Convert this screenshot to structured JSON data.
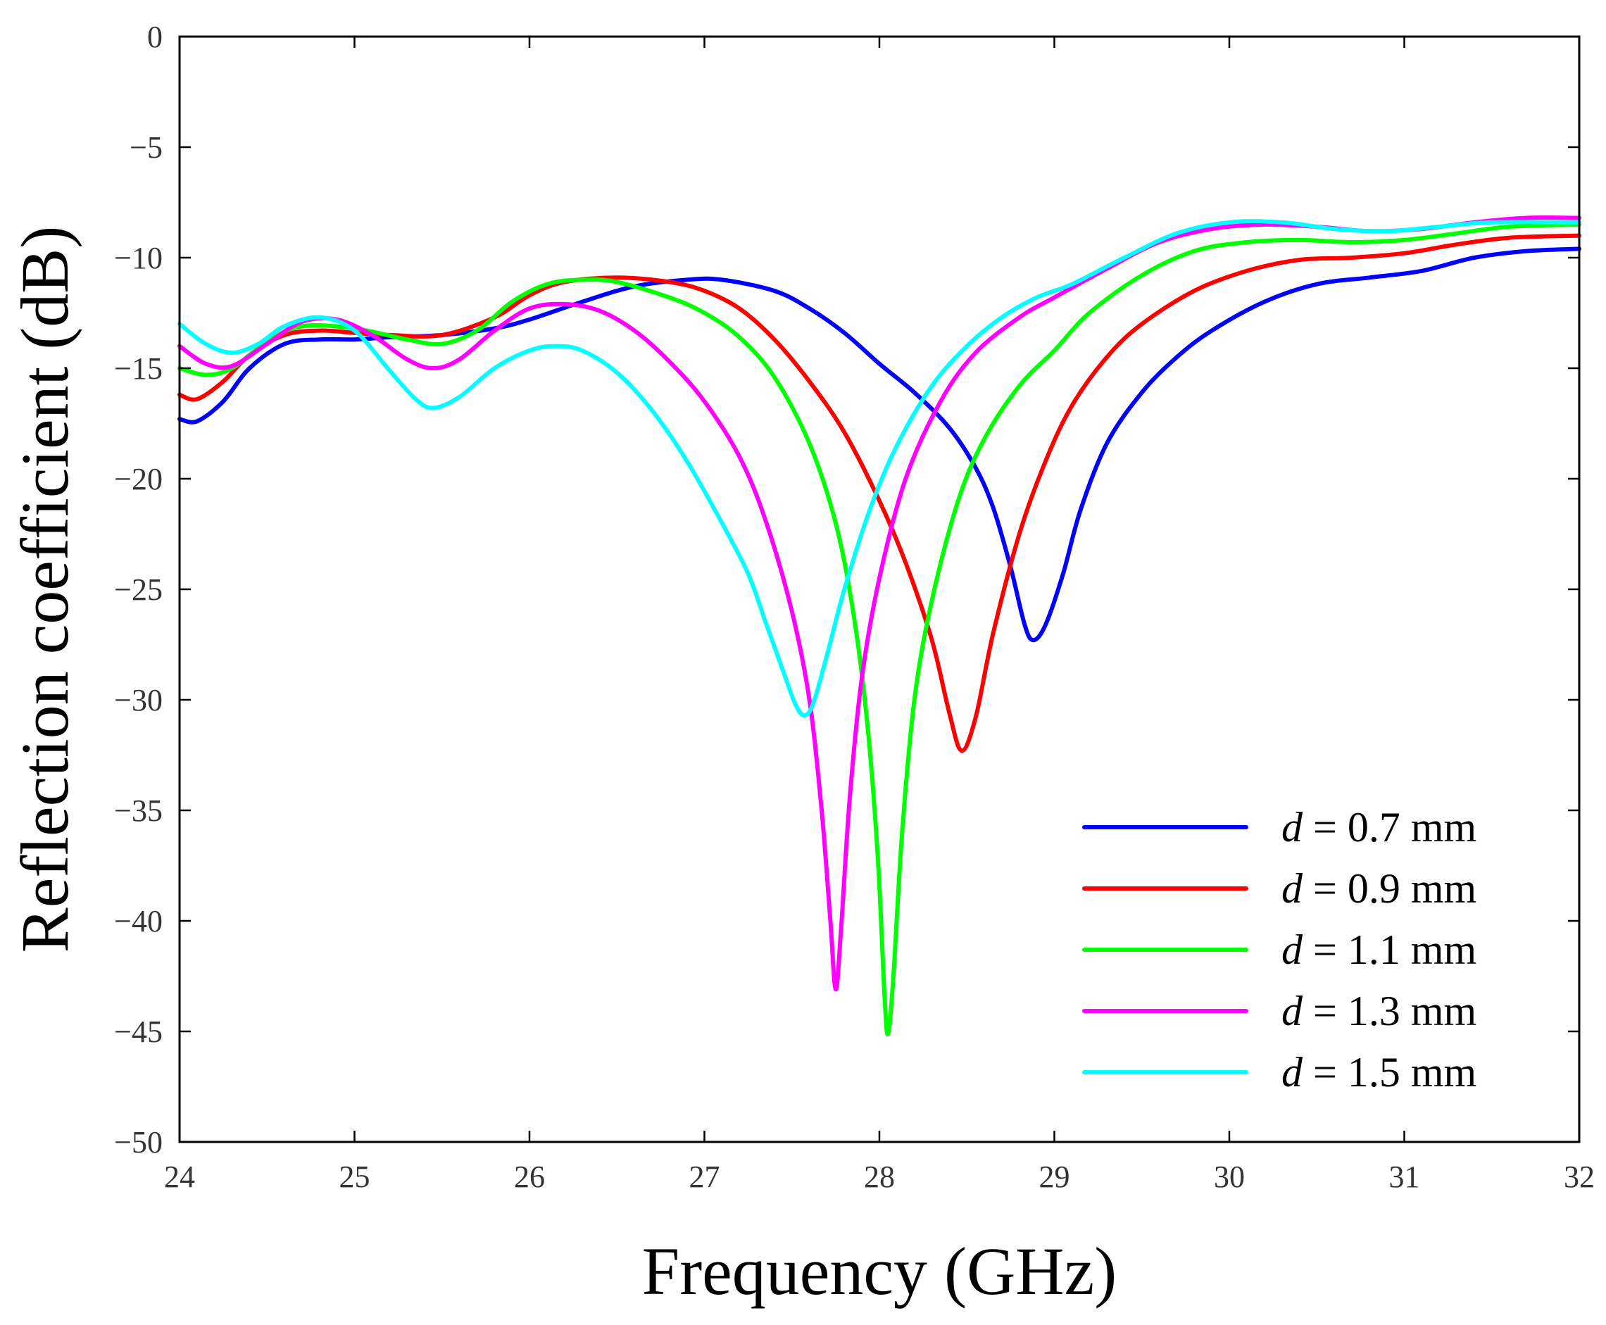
{
  "chart_data": {
    "type": "line",
    "title": "",
    "xlabel": "Frequency (GHz)",
    "ylabel": "Reflection coefficient (dB)",
    "xlim": [
      24,
      32
    ],
    "ylim": [
      -50,
      0
    ],
    "xticks": [
      24,
      25,
      26,
      27,
      28,
      29,
      30,
      31,
      32
    ],
    "xtick_labels": [
      "24",
      "25",
      "26",
      "27",
      "28",
      "29",
      "30",
      "31",
      "32"
    ],
    "yticks": [
      0,
      -5,
      -10,
      -15,
      -20,
      -25,
      -30,
      -35,
      -40,
      -45,
      -50
    ],
    "ytick_labels": [
      "0",
      "−5",
      "−10",
      "−15",
      "−20",
      "−25",
      "−30",
      "−35",
      "−40",
      "−45",
      "−50"
    ],
    "grid": false,
    "legend_position": "bottom-right",
    "series": [
      {
        "name": "d = 0.7 mm",
        "legend_var": "d",
        "legend_rest": " = 0.7 mm",
        "color": "#0000ff",
        "points": [
          [
            24.0,
            -17.3
          ],
          [
            24.1,
            -17.4
          ],
          [
            24.25,
            -16.5
          ],
          [
            24.4,
            -15.0
          ],
          [
            24.6,
            -13.9
          ],
          [
            24.8,
            -13.7
          ],
          [
            25.0,
            -13.7
          ],
          [
            25.2,
            -13.6
          ],
          [
            25.5,
            -13.5
          ],
          [
            25.8,
            -13.2
          ],
          [
            26.0,
            -12.8
          ],
          [
            26.3,
            -12.0
          ],
          [
            26.6,
            -11.3
          ],
          [
            26.9,
            -11.0
          ],
          [
            27.1,
            -11.0
          ],
          [
            27.4,
            -11.5
          ],
          [
            27.6,
            -12.3
          ],
          [
            27.8,
            -13.4
          ],
          [
            28.0,
            -14.8
          ],
          [
            28.2,
            -16.1
          ],
          [
            28.4,
            -17.7
          ],
          [
            28.55,
            -19.5
          ],
          [
            28.65,
            -21.3
          ],
          [
            28.75,
            -24.0
          ],
          [
            28.83,
            -26.6
          ],
          [
            28.88,
            -27.3
          ],
          [
            28.95,
            -26.6
          ],
          [
            29.05,
            -24.3
          ],
          [
            29.15,
            -21.4
          ],
          [
            29.3,
            -18.4
          ],
          [
            29.5,
            -16.1
          ],
          [
            29.7,
            -14.5
          ],
          [
            29.9,
            -13.3
          ],
          [
            30.2,
            -12.0
          ],
          [
            30.5,
            -11.2
          ],
          [
            30.8,
            -10.9
          ],
          [
            31.1,
            -10.6
          ],
          [
            31.4,
            -10.0
          ],
          [
            31.7,
            -9.7
          ],
          [
            32.0,
            -9.6
          ]
        ]
      },
      {
        "name": "d = 0.9 mm",
        "legend_var": "d",
        "legend_rest": " = 0.9 mm",
        "color": "#ff0000",
        "points": [
          [
            24.0,
            -16.2
          ],
          [
            24.1,
            -16.4
          ],
          [
            24.25,
            -15.6
          ],
          [
            24.4,
            -14.4
          ],
          [
            24.6,
            -13.5
          ],
          [
            24.8,
            -13.3
          ],
          [
            25.0,
            -13.4
          ],
          [
            25.2,
            -13.5
          ],
          [
            25.5,
            -13.5
          ],
          [
            25.8,
            -12.7
          ],
          [
            26.0,
            -11.7
          ],
          [
            26.2,
            -11.1
          ],
          [
            26.5,
            -10.9
          ],
          [
            26.8,
            -11.1
          ],
          [
            27.0,
            -11.5
          ],
          [
            27.2,
            -12.3
          ],
          [
            27.4,
            -13.7
          ],
          [
            27.6,
            -15.6
          ],
          [
            27.8,
            -17.9
          ],
          [
            28.0,
            -21.0
          ],
          [
            28.15,
            -23.8
          ],
          [
            28.3,
            -27.3
          ],
          [
            28.4,
            -30.6
          ],
          [
            28.47,
            -32.3
          ],
          [
            28.55,
            -30.8
          ],
          [
            28.65,
            -27.0
          ],
          [
            28.8,
            -22.5
          ],
          [
            28.95,
            -19.2
          ],
          [
            29.1,
            -16.7
          ],
          [
            29.3,
            -14.5
          ],
          [
            29.5,
            -13.0
          ],
          [
            29.8,
            -11.5
          ],
          [
            30.1,
            -10.6
          ],
          [
            30.4,
            -10.1
          ],
          [
            30.7,
            -10.0
          ],
          [
            31.0,
            -9.8
          ],
          [
            31.3,
            -9.4
          ],
          [
            31.6,
            -9.1
          ],
          [
            32.0,
            -9.0
          ]
        ]
      },
      {
        "name": "d = 1.1 mm",
        "legend_var": "d",
        "legend_rest": " = 1.1 mm",
        "color": "#00ff00",
        "points": [
          [
            24.0,
            -15.0
          ],
          [
            24.15,
            -15.3
          ],
          [
            24.3,
            -15.0
          ],
          [
            24.5,
            -13.8
          ],
          [
            24.7,
            -13.1
          ],
          [
            25.0,
            -13.2
          ],
          [
            25.3,
            -13.7
          ],
          [
            25.5,
            -13.9
          ],
          [
            25.7,
            -13.3
          ],
          [
            25.9,
            -12.0
          ],
          [
            26.1,
            -11.2
          ],
          [
            26.3,
            -11.0
          ],
          [
            26.5,
            -11.1
          ],
          [
            26.8,
            -11.8
          ],
          [
            27.0,
            -12.5
          ],
          [
            27.2,
            -13.6
          ],
          [
            27.4,
            -15.4
          ],
          [
            27.6,
            -18.4
          ],
          [
            27.75,
            -22.0
          ],
          [
            27.85,
            -26.0
          ],
          [
            27.93,
            -31.0
          ],
          [
            27.99,
            -37.0
          ],
          [
            28.03,
            -43.5
          ],
          [
            28.05,
            -45.1
          ],
          [
            28.08,
            -42.5
          ],
          [
            28.13,
            -36.0
          ],
          [
            28.2,
            -30.0
          ],
          [
            28.3,
            -25.5
          ],
          [
            28.45,
            -21.0
          ],
          [
            28.6,
            -18.2
          ],
          [
            28.8,
            -15.8
          ],
          [
            29.0,
            -14.2
          ],
          [
            29.2,
            -12.5
          ],
          [
            29.5,
            -10.8
          ],
          [
            29.8,
            -9.7
          ],
          [
            30.1,
            -9.3
          ],
          [
            30.4,
            -9.2
          ],
          [
            30.7,
            -9.3
          ],
          [
            31.0,
            -9.2
          ],
          [
            31.3,
            -8.9
          ],
          [
            31.6,
            -8.6
          ],
          [
            32.0,
            -8.5
          ]
        ]
      },
      {
        "name": "d = 1.3 mm",
        "legend_var": "d",
        "legend_rest": " = 1.3 mm",
        "color": "#ff00ff",
        "points": [
          [
            24.0,
            -14.0
          ],
          [
            24.15,
            -14.8
          ],
          [
            24.3,
            -14.9
          ],
          [
            24.5,
            -13.9
          ],
          [
            24.7,
            -12.9
          ],
          [
            24.9,
            -12.8
          ],
          [
            25.1,
            -13.5
          ],
          [
            25.3,
            -14.6
          ],
          [
            25.45,
            -15.0
          ],
          [
            25.6,
            -14.6
          ],
          [
            25.8,
            -13.3
          ],
          [
            26.0,
            -12.3
          ],
          [
            26.2,
            -12.1
          ],
          [
            26.4,
            -12.4
          ],
          [
            26.6,
            -13.3
          ],
          [
            26.8,
            -14.7
          ],
          [
            27.0,
            -16.5
          ],
          [
            27.2,
            -19.0
          ],
          [
            27.35,
            -21.9
          ],
          [
            27.5,
            -26.0
          ],
          [
            27.6,
            -30.0
          ],
          [
            27.67,
            -35.0
          ],
          [
            27.72,
            -40.0
          ],
          [
            27.75,
            -43.1
          ],
          [
            27.78,
            -40.5
          ],
          [
            27.83,
            -34.5
          ],
          [
            27.9,
            -29.0
          ],
          [
            28.0,
            -24.5
          ],
          [
            28.15,
            -20.0
          ],
          [
            28.35,
            -16.5
          ],
          [
            28.55,
            -14.3
          ],
          [
            28.8,
            -12.7
          ],
          [
            29.0,
            -11.8
          ],
          [
            29.3,
            -10.5
          ],
          [
            29.6,
            -9.3
          ],
          [
            29.9,
            -8.7
          ],
          [
            30.2,
            -8.5
          ],
          [
            30.5,
            -8.6
          ],
          [
            30.8,
            -8.8
          ],
          [
            31.1,
            -8.7
          ],
          [
            31.4,
            -8.4
          ],
          [
            31.7,
            -8.2
          ],
          [
            32.0,
            -8.2
          ]
        ]
      },
      {
        "name": "d = 1.5 mm",
        "legend_var": "d",
        "legend_rest": " = 1.5 mm",
        "color": "#00ffff",
        "points": [
          [
            24.0,
            -13.0
          ],
          [
            24.15,
            -13.9
          ],
          [
            24.3,
            -14.3
          ],
          [
            24.45,
            -13.9
          ],
          [
            24.6,
            -13.1
          ],
          [
            24.8,
            -12.7
          ],
          [
            25.0,
            -13.3
          ],
          [
            25.2,
            -15.1
          ],
          [
            25.35,
            -16.4
          ],
          [
            25.45,
            -16.8
          ],
          [
            25.6,
            -16.3
          ],
          [
            25.8,
            -15.0
          ],
          [
            26.0,
            -14.2
          ],
          [
            26.15,
            -14.0
          ],
          [
            26.3,
            -14.2
          ],
          [
            26.5,
            -15.2
          ],
          [
            26.7,
            -16.9
          ],
          [
            26.9,
            -19.2
          ],
          [
            27.1,
            -22.0
          ],
          [
            27.25,
            -24.3
          ],
          [
            27.35,
            -26.5
          ],
          [
            27.45,
            -28.7
          ],
          [
            27.52,
            -30.2
          ],
          [
            27.57,
            -30.7
          ],
          [
            27.62,
            -30.2
          ],
          [
            27.7,
            -28.0
          ],
          [
            27.8,
            -25.0
          ],
          [
            27.95,
            -21.3
          ],
          [
            28.1,
            -18.5
          ],
          [
            28.3,
            -15.8
          ],
          [
            28.5,
            -14.0
          ],
          [
            28.7,
            -12.7
          ],
          [
            28.9,
            -11.8
          ],
          [
            29.1,
            -11.2
          ],
          [
            29.4,
            -10.0
          ],
          [
            29.7,
            -8.9
          ],
          [
            30.0,
            -8.4
          ],
          [
            30.3,
            -8.4
          ],
          [
            30.6,
            -8.7
          ],
          [
            30.9,
            -8.8
          ],
          [
            31.2,
            -8.6
          ],
          [
            31.5,
            -8.4
          ],
          [
            32.0,
            -8.4
          ]
        ]
      }
    ]
  }
}
